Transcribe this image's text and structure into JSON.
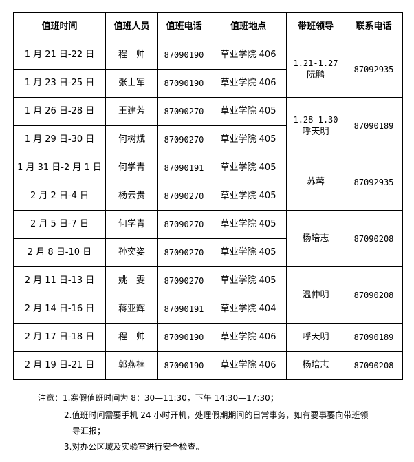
{
  "headers": [
    "值班时间",
    "值班人员",
    "值班电话",
    "值班地点",
    "带班领导",
    "联系电话"
  ],
  "rows": [
    {
      "time": "1 月 21 日-22 日",
      "person": "程　帅",
      "phone": "87090190",
      "place": "草业学院 406"
    },
    {
      "time": "1 月 23 日-25 日",
      "person": "张士军",
      "phone": "87090190",
      "place": "草业学院 406"
    },
    {
      "time": "1 月 26 日-28 日",
      "person": "王建芳",
      "phone": "87090270",
      "place": "草业学院 405"
    },
    {
      "time": "1 月 29 日-30 日",
      "person": "何树斌",
      "phone": "87090270",
      "place": "草业学院 405"
    },
    {
      "time": "1 月 31 日-2 月 1 日",
      "person": "何学青",
      "phone": "87090191",
      "place": "草业学院 405"
    },
    {
      "time": "2 月 2 日-4 日",
      "person": "杨云贵",
      "phone": "87090270",
      "place": "草业学院 405"
    },
    {
      "time": "2 月 5 日-7 日",
      "person": "何学青",
      "phone": "87090270",
      "place": "草业学院 405"
    },
    {
      "time": "2 月 8 日-10 日",
      "person": "孙奕姿",
      "phone": "87090270",
      "place": "草业学院 405"
    },
    {
      "time": "2 月 11 日-13 日",
      "person": "姚　雯",
      "phone": "87090270",
      "place": "草业学院 405"
    },
    {
      "time": "2 月 14 日-16 日",
      "person": "蒋亚辉",
      "phone": "87090191",
      "place": "草业学院 404"
    },
    {
      "time": "2 月 17 日-18 日",
      "person": "程　帅",
      "phone": "87090190",
      "place": "草业学院 406"
    },
    {
      "time": "2 月 19 日-21 日",
      "person": "郭燕楠",
      "phone": "87090190",
      "place": "草业学院 406"
    }
  ],
  "leaders": [
    {
      "period": "1.21-1.27",
      "name": "阮鹏",
      "contact": "87092935"
    },
    {
      "period": "1.28-1.30",
      "name": "呼天明",
      "contact": "87090189"
    },
    {
      "period": "",
      "name": "苏蓉",
      "contact": "87092935"
    },
    {
      "period": "",
      "name": "杨培志",
      "contact": "87090208"
    },
    {
      "period": "",
      "name": "温仲明",
      "contact": "87090208"
    },
    {
      "period": "",
      "name": "呼天明",
      "contact": "87090189"
    },
    {
      "period": "",
      "name": "杨培志",
      "contact": "87090208"
    }
  ],
  "notes": {
    "n1": "注意：1.寒假值班时间为 8：30—11:30，下午 14:30—17:30；",
    "n2a": "2.值班时间需要手机 24 小时开机，处理假期期间的日常事务，如有要事要向带班领",
    "n2b": "导汇报；",
    "n3": "3.对办公区域及实验室进行安全检查。"
  }
}
